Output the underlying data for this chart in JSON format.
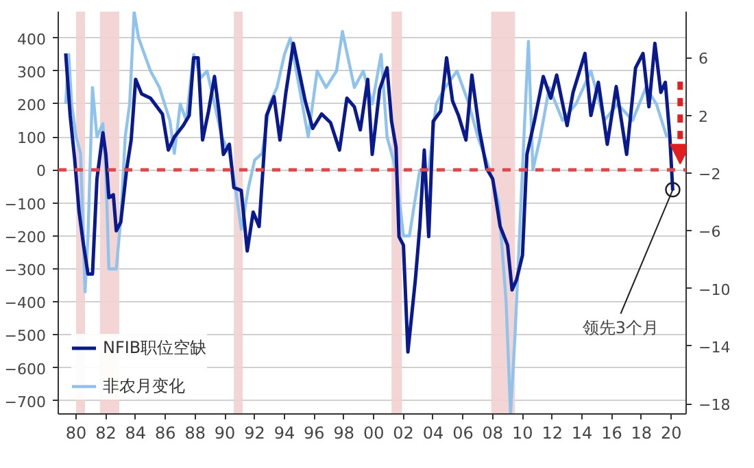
{
  "chart_data": {
    "type": "line",
    "xlim": [
      1978.8,
      2021.0
    ],
    "xticks": [
      {
        "value": 1980,
        "label": "80"
      },
      {
        "value": 1982,
        "label": "82"
      },
      {
        "value": 1984,
        "label": "84"
      },
      {
        "value": 1986,
        "label": "86"
      },
      {
        "value": 1988,
        "label": "88"
      },
      {
        "value": 1990,
        "label": "90"
      },
      {
        "value": 1992,
        "label": "92"
      },
      {
        "value": 1994,
        "label": "94"
      },
      {
        "value": 1996,
        "label": "96"
      },
      {
        "value": 1998,
        "label": "98"
      },
      {
        "value": 2000,
        "label": "00"
      },
      {
        "value": 2002,
        "label": "02"
      },
      {
        "value": 2004,
        "label": "04"
      },
      {
        "value": 2006,
        "label": "06"
      },
      {
        "value": 2008,
        "label": "08"
      },
      {
        "value": 2010,
        "label": "10"
      },
      {
        "value": 2012,
        "label": "12"
      },
      {
        "value": 2014,
        "label": "14"
      },
      {
        "value": 2016,
        "label": "16"
      },
      {
        "value": 2018,
        "label": "18"
      },
      {
        "value": 2020,
        "label": "20"
      }
    ],
    "ylim": [
      -740,
      480
    ],
    "yticks": [
      -700,
      -600,
      -500,
      -400,
      -300,
      -200,
      -100,
      0,
      100,
      200,
      300,
      400
    ],
    "y2lim": [
      -18.7,
      9.2
    ],
    "y2ticks": [
      -18,
      -14,
      -10,
      -6,
      -2,
      2,
      6
    ],
    "grid": "y",
    "legend": "bottom left",
    "line_style": "solid",
    "series": [
      {
        "name": "NFIB职位空缺",
        "color": "#0a1a8c",
        "axis": "y2",
        "x": [
          1979.3,
          1979.6,
          1979.9,
          1980.2,
          1980.5,
          1980.8,
          1981.1,
          1981.4,
          1981.8,
          1982.0,
          1982.2,
          1982.5,
          1982.7,
          1983.0,
          1983.4,
          1983.7,
          1984.0,
          1984.4,
          1985.0,
          1985.8,
          1986.2,
          1986.6,
          1987.2,
          1987.6,
          1987.9,
          1988.2,
          1988.5,
          1988.9,
          1989.3,
          1989.6,
          1989.9,
          1990.3,
          1990.6,
          1991.1,
          1991.5,
          1991.9,
          1992.3,
          1992.8,
          1993.3,
          1993.7,
          1994.1,
          1994.6,
          1994.9,
          1995.4,
          1995.9,
          1996.5,
          1997.1,
          1997.7,
          1998.2,
          1998.7,
          1999.1,
          1999.6,
          1999.9,
          2000.4,
          2000.9,
          2001.2,
          2001.5,
          2001.7,
          2002.0,
          2002.3,
          2002.8,
          2003.1,
          2003.4,
          2003.7,
          2004.0,
          2004.5,
          2004.9,
          2005.3,
          2005.7,
          2006.2,
          2006.6,
          2007.1,
          2007.6,
          2008.0,
          2008.5,
          2009.0,
          2009.3,
          2009.6,
          2010.0,
          2010.3,
          2010.8,
          2011.4,
          2011.9,
          2012.3,
          2013.0,
          2013.4,
          2014.2,
          2014.6,
          2015.1,
          2015.7,
          2016.3,
          2017.0,
          2017.6,
          2018.1,
          2018.5,
          2018.9,
          2019.3,
          2019.6,
          2019.9,
          2020.1
        ],
        "values": [
          6.3,
          2.0,
          -1.0,
          -4.7,
          -7.0,
          -9.0,
          -9.0,
          -2.4,
          0.8,
          -0.7,
          -3.7,
          -3.5,
          -6.0,
          -5.4,
          -1.7,
          0.3,
          4.5,
          3.5,
          3.2,
          2.1,
          -0.4,
          0.5,
          1.3,
          2.0,
          6.0,
          6.0,
          0.3,
          2.3,
          4.7,
          2.3,
          -0.7,
          0.0,
          -3.0,
          -3.2,
          -7.4,
          -4.7,
          -5.7,
          2.0,
          3.3,
          0.3,
          3.6,
          7.0,
          5.5,
          3.0,
          1.1,
          2.1,
          1.5,
          -0.4,
          3.2,
          2.6,
          1.0,
          4.5,
          -0.7,
          3.8,
          5.3,
          1.6,
          -0.2,
          -6.4,
          -7.0,
          -14.4,
          -9.4,
          -5.7,
          -0.4,
          -6.4,
          1.6,
          2.3,
          6.0,
          3.0,
          2.0,
          0.3,
          4.8,
          1.0,
          -1.7,
          -2.4,
          -5.7,
          -7.0,
          -10.1,
          -9.4,
          -7.7,
          -0.7,
          1.6,
          4.7,
          3.2,
          4.8,
          1.3,
          3.6,
          6.3,
          2.0,
          4.3,
          0.0,
          4.0,
          -0.7,
          5.3,
          6.3,
          2.6,
          7.0,
          3.6,
          4.3,
          0.6,
          -3.2
        ]
      },
      {
        "name": "非农月变化",
        "color": "#8fc3ec",
        "x": [
          1979.3,
          1979.5,
          1979.7,
          1980.0,
          1980.3,
          1980.6,
          1980.8,
          1981.1,
          1981.4,
          1981.8,
          1982.0,
          1982.2,
          1982.7,
          1983.0,
          1983.3,
          1983.6,
          1983.9,
          1984.2,
          1984.6,
          1985.0,
          1985.6,
          1986.3,
          1986.6,
          1987.0,
          1987.4,
          1987.9,
          1988.4,
          1988.8,
          1989.3,
          1989.8,
          1990.3,
          1990.7,
          1991.1,
          1991.6,
          1992.0,
          1992.5,
          1993.0,
          1993.5,
          1994.0,
          1994.4,
          1995.0,
          1995.6,
          1996.2,
          1996.8,
          1997.5,
          1997.9,
          1998.7,
          1999.3,
          1999.9,
          2000.5,
          2000.9,
          2001.5,
          2002.0,
          2002.4,
          2003.1,
          2003.7,
          2004.2,
          2004.8,
          2005.6,
          2006.4,
          2007.0,
          2007.8,
          2008.4,
          2008.9,
          2009.2,
          2009.5,
          2009.8,
          2010.1,
          2010.4,
          2010.7,
          2011.2,
          2011.8,
          2012.7,
          2013.6,
          2014.6,
          2015.5,
          2016.4,
          2017.4,
          2018.3,
          2019.0,
          2019.7
        ],
        "values": [
          200,
          350,
          200,
          100,
          50,
          -370,
          -200,
          250,
          100,
          140,
          0,
          -300,
          -300,
          -150,
          100,
          200,
          480,
          400,
          350,
          300,
          250,
          150,
          50,
          200,
          150,
          350,
          280,
          300,
          200,
          100,
          50,
          -50,
          -180,
          -50,
          30,
          50,
          200,
          250,
          350,
          400,
          250,
          100,
          300,
          250,
          300,
          420,
          250,
          300,
          200,
          350,
          100,
          0,
          -200,
          -200,
          0,
          0,
          200,
          250,
          300,
          200,
          100,
          0,
          -100,
          -400,
          -740,
          -500,
          -200,
          100,
          390,
          0,
          100,
          250,
          150,
          200,
          300,
          150,
          200,
          150,
          250,
          200,
          100
        ]
      }
    ],
    "ref_lines": [
      {
        "axis": "y",
        "value": 0,
        "color": "#e0474c",
        "line_style": "dashed"
      }
    ],
    "bands": [
      {
        "axis": "x",
        "from": 1980.0,
        "to": 1980.6,
        "color": "#f2d0d0"
      },
      {
        "axis": "x",
        "from": 1981.6,
        "to": 1982.9,
        "color": "#f2d0d0"
      },
      {
        "axis": "x",
        "from": 1990.6,
        "to": 1991.2,
        "color": "#f2d0d0"
      },
      {
        "axis": "x",
        "from": 2001.2,
        "to": 2001.9,
        "color": "#f2d0d0"
      },
      {
        "axis": "x",
        "from": 2007.9,
        "to": 2009.5,
        "color": "#f2d0d0"
      }
    ],
    "annotations": [
      {
        "text": "领先3个月",
        "x": 2020.1,
        "y": -60
      }
    ]
  }
}
